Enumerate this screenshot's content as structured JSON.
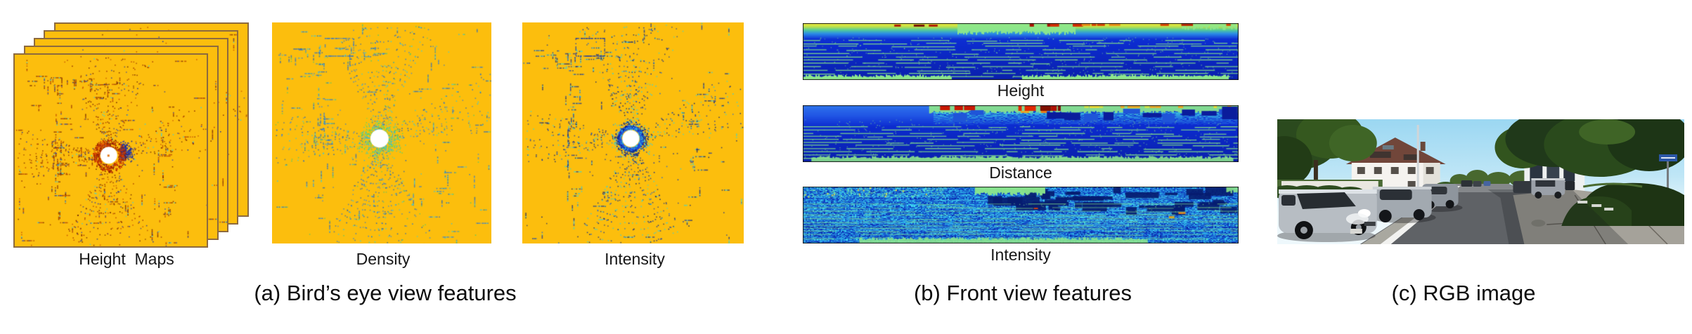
{
  "figure": {
    "bev": {
      "height_maps_label": "Height  Maps",
      "density_label": "Density",
      "intensity_label": "Intensity",
      "caption": "(a) Bird’s eye view features"
    },
    "front": {
      "height_label": "Height",
      "distance_label": "Distance",
      "intensity_label": "Intensity",
      "caption": "(b) Front view features"
    },
    "rgb": {
      "caption": "(c) RGB image"
    }
  },
  "colors": {
    "page_background": "#FFFFFF",
    "text": "#111111",
    "bev_background": "#FCBE0D",
    "bev_border": "#8D6A3E",
    "bev_height_dot_red": "#8A2B00",
    "bev_density_dot_blue": "#2F74CC",
    "bev_intensity_dot_navy": "#1A38A4",
    "cyan_accent": "#38D2E2",
    "center_circle": "#FFFFFF",
    "front_deep_blue": "#0C2CD0",
    "front_light_green": "#8DE88C",
    "front_scanline_green": "#7FDC8A",
    "front_red": "#C81800",
    "front_yellow": "#F0EC3C",
    "strip_border": "#161616"
  }
}
